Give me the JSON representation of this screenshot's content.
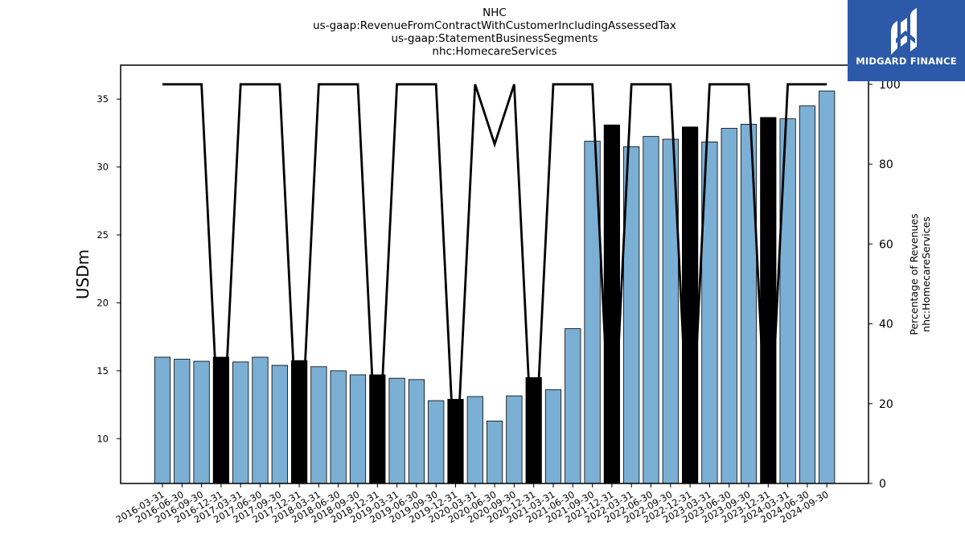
{
  "chart_data": {
    "type": "bar",
    "title_lines": [
      "NHC",
      "us-gaap:RevenueFromContractWithCustomerIncludingAssessedTax",
      "us-gaap:StatementBusinessSegments",
      "nhc:HomecareServices"
    ],
    "ylabel": "USDm",
    "y2label_lines": [
      "Percentage of Revenues",
      "nhc:HomecareServices"
    ],
    "ylim": [
      6.7,
      37.5
    ],
    "y2lim": [
      0,
      104.8
    ],
    "yticks": [
      10,
      15,
      20,
      25,
      30,
      35
    ],
    "y2ticks": [
      0,
      20,
      40,
      60,
      80,
      100
    ],
    "categories": [
      "2016-03-31",
      "2016-06-30",
      "2016-09-30",
      "2016-12-31",
      "2017-03-31",
      "2017-06-30",
      "2017-09-30",
      "2017-12-31",
      "2018-03-31",
      "2018-06-30",
      "2018-09-30",
      "2018-12-31",
      "2019-03-31",
      "2019-06-30",
      "2019-09-30",
      "2019-12-31",
      "2020-03-31",
      "2020-06-30",
      "2020-09-30",
      "2020-12-31",
      "2021-03-31",
      "2021-06-30",
      "2021-09-30",
      "2021-12-31",
      "2022-03-31",
      "2022-06-30",
      "2022-09-30",
      "2022-12-31",
      "2023-03-31",
      "2023-06-30",
      "2023-09-30",
      "2023-12-31",
      "2024-03-31",
      "2024-06-30",
      "2024-09-30"
    ],
    "series": [
      {
        "values": [
          16.0,
          15.85,
          15.7,
          16.0,
          15.65,
          16.0,
          15.4,
          15.75,
          15.3,
          15.0,
          14.7,
          14.7,
          14.45,
          14.35,
          12.8,
          12.9,
          13.1,
          11.3,
          13.15,
          14.5,
          13.6,
          18.1,
          31.9,
          33.1,
          31.5,
          32.25,
          32.05,
          32.95,
          31.85,
          32.85,
          33.15,
          33.65,
          33.55,
          34.5,
          35.6
        ],
        "highlight": [
          false,
          false,
          false,
          true,
          false,
          false,
          false,
          true,
          false,
          false,
          false,
          true,
          false,
          false,
          false,
          true,
          false,
          false,
          false,
          true,
          false,
          false,
          false,
          true,
          false,
          false,
          false,
          true,
          false,
          false,
          false,
          true,
          false,
          false,
          false
        ],
        "color": "#7bafd4",
        "highlight_color": "#000000"
      },
      {
        "type": "line",
        "axis": "right",
        "values": [
          100,
          100,
          100,
          0,
          100,
          100,
          100,
          0,
          100,
          100,
          100,
          0,
          100,
          100,
          100,
          0,
          100,
          85,
          100,
          0,
          100,
          100,
          100,
          0,
          100,
          100,
          100,
          0,
          100,
          100,
          100,
          0,
          100,
          100,
          100
        ],
        "color": "#000000"
      }
    ],
    "grid": false,
    "legend": "none"
  },
  "logo": {
    "text": "MIDGARD FINANCE",
    "color": "#2c5aa8"
  }
}
